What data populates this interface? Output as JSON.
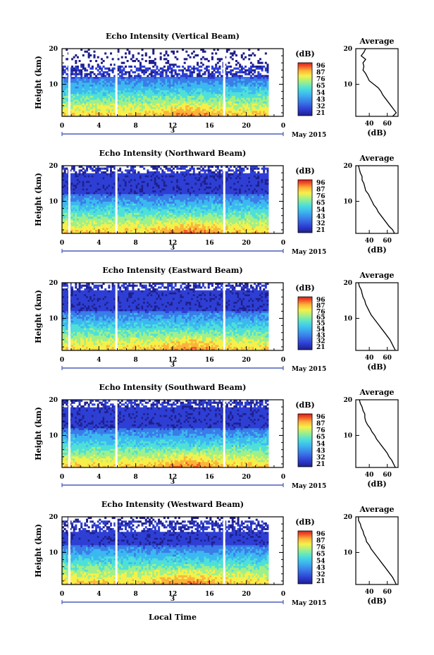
{
  "chart_data": [
    {
      "type": "heatmap",
      "title": "Echo Intensity (Vertical Beam)",
      "ylabel": "Height (km)",
      "ylim": [
        1,
        20
      ],
      "y_ticks": [
        "20",
        "10"
      ],
      "xlim": [
        0,
        24
      ],
      "x_ticks": [
        "0",
        "4",
        "8",
        "12",
        "16",
        "20",
        "0"
      ],
      "date_day": "3",
      "date_month": "May 2015",
      "colorbar": {
        "unit": "(dB)",
        "ticks": [
          "96",
          "87",
          "76",
          "65",
          "54",
          "43",
          "32",
          "21"
        ],
        "min": 21,
        "max": 96
      },
      "data_gaps_hours": [
        0.8,
        5.9,
        17.6
      ],
      "upper_cut_km": 12,
      "peak_hour": 14,
      "profile": {
        "title": "Average",
        "xlabel": "(dB)",
        "x_ticks": [
          "40",
          "60"
        ],
        "xlim": [
          25,
          72
        ],
        "heights_km": [
          20,
          19,
          18,
          17,
          16,
          15,
          14,
          13,
          12,
          11,
          10,
          9,
          8,
          7,
          6,
          5,
          4,
          3,
          2,
          1
        ],
        "values_db": [
          36,
          34,
          31,
          36,
          33,
          34,
          33,
          36,
          38,
          40,
          45,
          50,
          53,
          55,
          58,
          61,
          64,
          67,
          70,
          66
        ]
      }
    },
    {
      "type": "heatmap",
      "title": "Echo Intensity (Northward Beam)",
      "ylabel": "Height (km)",
      "ylim": [
        1,
        20
      ],
      "y_ticks": [
        "20",
        "10"
      ],
      "xlim": [
        0,
        24
      ],
      "x_ticks": [
        "0",
        "4",
        "8",
        "12",
        "16",
        "20",
        "0"
      ],
      "date_day": "3",
      "date_month": "May 2015",
      "colorbar": {
        "unit": "(dB)",
        "ticks": [
          "96",
          "87",
          "76",
          "65",
          "54",
          "43",
          "32",
          "21"
        ],
        "min": 21,
        "max": 96
      },
      "data_gaps_hours": [
        0.8,
        5.9,
        17.6
      ],
      "upper_cut_km": 18,
      "peak_hour": 14,
      "profile": {
        "title": "Average",
        "xlabel": "(dB)",
        "x_ticks": [
          "40",
          "60"
        ],
        "xlim": [
          25,
          72
        ],
        "heights_km": [
          20,
          19,
          18,
          17,
          16,
          15,
          14,
          13,
          12,
          11,
          10,
          9,
          8,
          7,
          6,
          5,
          4,
          3,
          2,
          1
        ],
        "values_db": [
          28,
          29,
          30,
          32,
          32,
          34,
          35,
          36,
          39,
          41,
          43,
          45,
          48,
          50,
          53,
          56,
          59,
          62,
          66,
          68
        ]
      }
    },
    {
      "type": "heatmap",
      "title": "Echo Intensity (Eastward Beam)",
      "ylabel": "Height (km)",
      "ylim": [
        1,
        20
      ],
      "y_ticks": [
        "20",
        "10"
      ],
      "xlim": [
        0,
        24
      ],
      "x_ticks": [
        "0",
        "4",
        "8",
        "12",
        "16",
        "20",
        "0"
      ],
      "date_day": "3",
      "date_month": "May 2015",
      "colorbar": {
        "unit": "(dB)",
        "ticks": [
          "96",
          "87",
          "76",
          "65",
          "55",
          "54",
          "43",
          "32",
          "21"
        ],
        "min": 21,
        "max": 96
      },
      "data_gaps_hours": [
        0.8,
        5.9,
        17.6
      ],
      "upper_cut_km": 18,
      "peak_hour": 14,
      "profile": {
        "title": "Average",
        "xlabel": "(dB)",
        "x_ticks": [
          "40",
          "60"
        ],
        "xlim": [
          25,
          72
        ],
        "heights_km": [
          20,
          19,
          18,
          17,
          16,
          15,
          14,
          13,
          12,
          11,
          10,
          9,
          8,
          7,
          6,
          5,
          4,
          3,
          2,
          1
        ],
        "values_db": [
          28,
          29,
          31,
          32,
          33,
          35,
          36,
          38,
          40,
          42,
          45,
          48,
          51,
          54,
          57,
          60,
          63,
          65,
          67,
          69
        ]
      }
    },
    {
      "type": "heatmap",
      "title": "Echo Intensity (Southward Beam)",
      "ylabel": "Height (km)",
      "ylim": [
        1,
        20
      ],
      "y_ticks": [
        "20",
        "10"
      ],
      "xlim": [
        0,
        24
      ],
      "x_ticks": [
        "0",
        "4",
        "8",
        "12",
        "16",
        "20",
        "0"
      ],
      "date_day": "3",
      "date_month": "May 2015",
      "colorbar": {
        "unit": "(dB)",
        "ticks": [
          "96",
          "87",
          "76",
          "65",
          "54",
          "43",
          "32",
          "21"
        ],
        "min": 21,
        "max": 96
      },
      "data_gaps_hours": [
        0.8,
        5.9,
        17.6
      ],
      "upper_cut_km": 18,
      "peak_hour": 14,
      "profile": {
        "title": "Average",
        "xlabel": "(dB)",
        "x_ticks": [
          "40",
          "60"
        ],
        "xlim": [
          25,
          72
        ],
        "heights_km": [
          20,
          19,
          18,
          17,
          16,
          15,
          14,
          13,
          12,
          11,
          10,
          9,
          8,
          7,
          6,
          5,
          4,
          3,
          2,
          1
        ],
        "values_db": [
          29,
          30,
          32,
          33,
          35,
          35,
          36,
          38,
          41,
          43,
          46,
          48,
          51,
          54,
          57,
          60,
          62,
          65,
          67,
          69
        ]
      }
    },
    {
      "type": "heatmap",
      "title": "Echo Intensity (Westward Beam)",
      "ylabel": "Height (km)",
      "ylim": [
        1,
        20
      ],
      "y_ticks": [
        "20",
        "10"
      ],
      "xlim": [
        0,
        24
      ],
      "x_ticks": [
        "0",
        "4",
        "8",
        "12",
        "16",
        "20",
        "0"
      ],
      "date_day": "3",
      "date_month": "May 2015",
      "colorbar": {
        "unit": "(dB)",
        "ticks": [
          "96",
          "87",
          "76",
          "65",
          "54",
          "43",
          "32",
          "21"
        ],
        "min": 21,
        "max": 96
      },
      "data_gaps_hours": [
        0.8,
        5.9,
        17.6
      ],
      "upper_cut_km": 16,
      "peak_hour": 14,
      "profile": {
        "title": "Average",
        "xlabel": "(dB)",
        "x_ticks": [
          "40",
          "60"
        ],
        "xlim": [
          25,
          72
        ],
        "heights_km": [
          20,
          19,
          18,
          17,
          16,
          15,
          14,
          13,
          12,
          11,
          10,
          9,
          8,
          7,
          6,
          5,
          4,
          3,
          2,
          1
        ],
        "values_db": [
          28,
          28,
          30,
          31,
          33,
          34,
          36,
          37,
          40,
          42,
          45,
          48,
          51,
          54,
          57,
          60,
          63,
          66,
          68,
          70
        ]
      }
    }
  ],
  "figure": {
    "xlabel": "Local Time",
    "colormap": [
      "#1f1f8c",
      "#2e3fd4",
      "#3a7ce8",
      "#3cb8f0",
      "#4fe0d8",
      "#9ff08a",
      "#f6f04a",
      "#fbb43a",
      "#f35a28",
      "#d81e1e"
    ]
  }
}
